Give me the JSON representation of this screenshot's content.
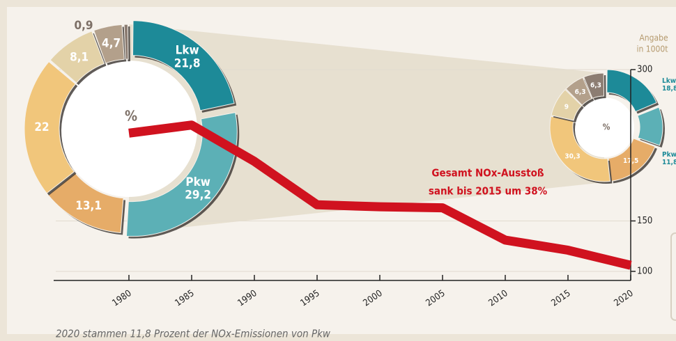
{
  "chart_data": [
    {
      "type": "line",
      "x": [
        1980,
        1985,
        1990,
        1995,
        2000,
        2005,
        2010,
        2015,
        2020
      ],
      "series": [
        {
          "name": "Gesamt NOx-Ausstoß",
          "color": "#d0121f",
          "values": [
            237,
            245,
            209,
            166,
            164,
            163,
            131,
            121,
            106
          ]
        }
      ],
      "xlim": [
        1974,
        2020
      ],
      "xticks": [
        1980,
        1985,
        1990,
        1995,
        2000,
        2005,
        2010,
        2015,
        2020
      ],
      "ylim": [
        91,
        300
      ],
      "yticks": [
        100,
        150,
        300
      ],
      "grid": true,
      "y_axis_label": [
        "Angabe",
        "in 1000t"
      ],
      "annotation": [
        "Gesamt NOx-Ausstoß",
        "sank bis 2015 um 38%"
      ],
      "footnote": "2020 stammen 11,8 Prozent der NOx-Emissionen von Pkw"
    },
    {
      "type": "donut",
      "title": "%",
      "categories": [
        "Lkw",
        "Pkw",
        null,
        null,
        null,
        null,
        null
      ],
      "values": [
        21.8,
        29.2,
        13.1,
        22,
        8.1,
        4.7,
        0.9
      ],
      "value_labels": [
        "21,8",
        "29,2",
        "13,1",
        "22",
        "8,1",
        "4,7",
        "0,9"
      ],
      "colors": [
        "#1d8a98",
        "#5cb0b6",
        "#e6ac68",
        "#f1c67b",
        "#e3d2a8",
        "#b3a08b",
        "#8c7d72"
      ]
    },
    {
      "type": "donut",
      "title": "%",
      "categories": [
        "Lkw",
        "Pkw",
        null,
        null,
        null,
        null,
        null
      ],
      "values": [
        18.8,
        11.8,
        17.5,
        30.3,
        9,
        6.3,
        6.3
      ],
      "value_labels": [
        "18,8",
        "11,8",
        "17,5",
        "30,3",
        "9",
        "6,3",
        "6,3"
      ],
      "colors": [
        "#1d8a98",
        "#5cb0b6",
        "#e6ac68",
        "#f1c67b",
        "#e3d2a8",
        "#b3a08b",
        "#8c7d72"
      ]
    }
  ]
}
